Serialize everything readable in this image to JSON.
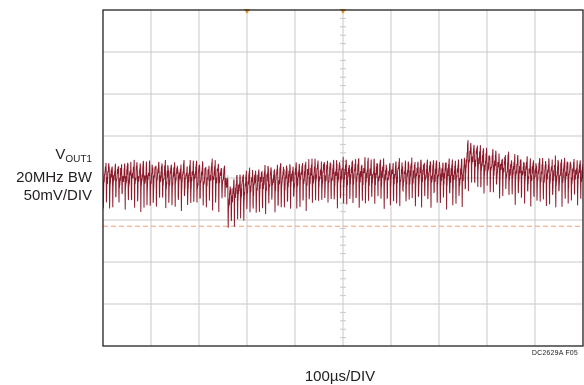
{
  "chart_data": {
    "type": "line",
    "title": "",
    "channel": {
      "symbol": "V",
      "subscript": "OUT1",
      "bandwidth": "20MHz BW",
      "vertical_scale": "50mV/DIV"
    },
    "horizontal_scale": "100µs/DIV",
    "figure_id": "DC2629A F05",
    "grid": true,
    "x_divisions": 10,
    "y_divisions": 8,
    "xlim_div": [
      0,
      10
    ],
    "ylim_div": [
      -4,
      4
    ],
    "reference_level_div": -1.15,
    "trigger_markers_div": [
      3.0,
      5.0
    ],
    "series": [
      {
        "ripple_period_div": 0.065,
        "ripple_amplitude_div": 0.55,
        "baseline_div": [
          [
            0,
            0.05
          ],
          [
            2.55,
            0.05
          ],
          [
            2.62,
            -0.5
          ],
          [
            2.8,
            -0.25
          ],
          [
            3.3,
            -0.05
          ],
          [
            4.5,
            0.1
          ],
          [
            7.5,
            0.1
          ],
          [
            7.6,
            0.55
          ],
          [
            8.0,
            0.35
          ],
          [
            8.8,
            0.15
          ],
          [
            10,
            0.1
          ]
        ],
        "color": "#8b1a2b"
      }
    ],
    "colors": {
      "trace": "#8b1a2b",
      "reference": "#f0a070",
      "trigger": "#e08a1e",
      "grid": "#c8c8c8",
      "frame": "#231f20"
    }
  }
}
